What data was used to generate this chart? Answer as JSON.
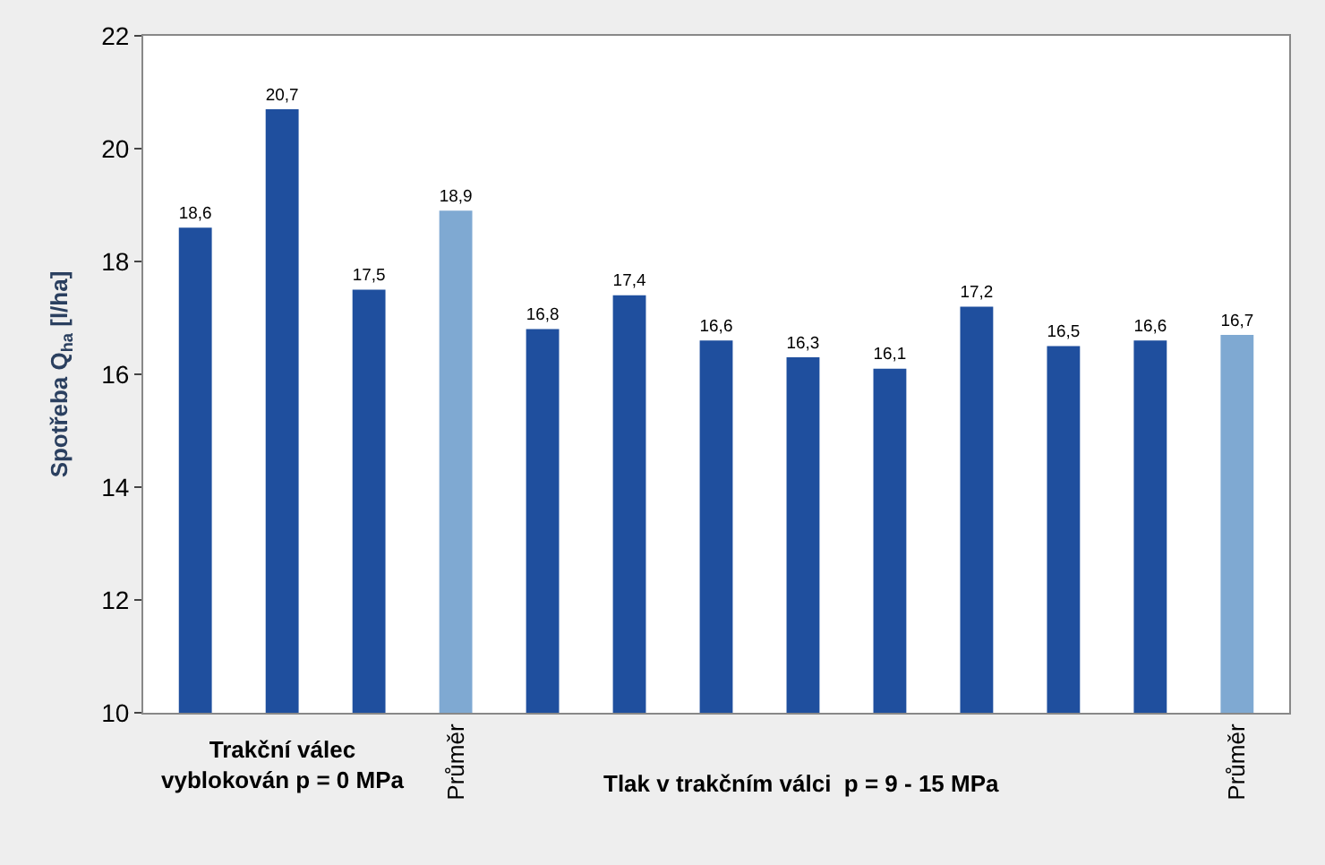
{
  "chart_data": {
    "type": "bar",
    "categories": [
      null,
      null,
      null,
      "Průměr",
      null,
      null,
      null,
      null,
      null,
      null,
      null,
      null,
      "Průměr"
    ],
    "values": [
      18.6,
      20.7,
      17.5,
      18.9,
      16.8,
      17.4,
      16.6,
      16.3,
      16.1,
      17.2,
      16.5,
      16.6,
      16.7
    ],
    "colors": [
      "#1f4f9e",
      "#1f4f9e",
      "#1f4f9e",
      "#7fa9d2",
      "#1f4f9e",
      "#1f4f9e",
      "#1f4f9e",
      "#1f4f9e",
      "#1f4f9e",
      "#1f4f9e",
      "#1f4f9e",
      "#1f4f9e",
      "#7fa9d2"
    ],
    "ylabel": "Spotřeba Q$_{ha}$ [l/ha]",
    "ylim": [
      10,
      22
    ],
    "yticks": [
      10,
      12,
      14,
      16,
      18,
      20,
      22
    ],
    "value_labels": [
      "18,6",
      "20,7",
      "17,5",
      "18,9",
      "16,8",
      "17,4",
      "16,6",
      "16,3",
      "16,1",
      "17,2",
      "16,5",
      "16,6",
      "16,7"
    ],
    "annotations": [
      "Trakční válec\nvyblokován p = 0 MPa",
      "Tlak v trakčním válci  p = 9 - 15 MPa"
    ]
  }
}
